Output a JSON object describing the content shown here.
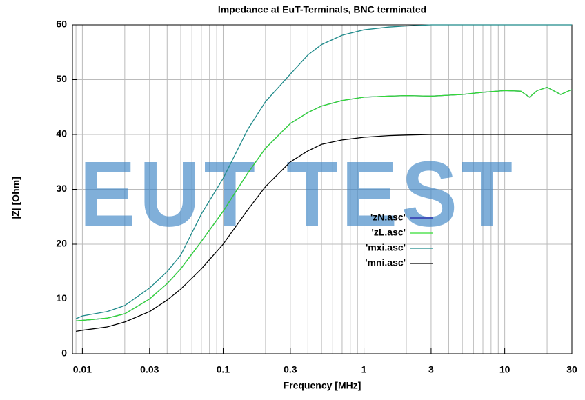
{
  "chart_data": {
    "type": "line",
    "title": "Impedance at EuT-Terminals, BNC terminated",
    "xlabel": "Frequency [MHz]",
    "ylabel": "|Z| [Ohm]",
    "watermark": "EUT TEST",
    "x": [
      0.009,
      0.01,
      0.015,
      0.02,
      0.03,
      0.04,
      0.05,
      0.07,
      0.1,
      0.15,
      0.2,
      0.3,
      0.4,
      0.5,
      0.7,
      1,
      1.5,
      2,
      3,
      5,
      7,
      10,
      13,
      15,
      17,
      20,
      25,
      30
    ],
    "series": [
      {
        "name": "'zN.asc'",
        "color": "#1c1ca8",
        "values": [
          6,
          6.1,
          6.5,
          7.3,
          10,
          12.8,
          15.5,
          20.5,
          26,
          33,
          37.5,
          42,
          44,
          45.2,
          46.2,
          46.8,
          47,
          47.1,
          47,
          47.3,
          47.7,
          48,
          47.9,
          46.8,
          48,
          48.6,
          47.3,
          48.2
        ]
      },
      {
        "name": "'zL.asc'",
        "color": "#33dd33",
        "values": [
          6,
          6.1,
          6.5,
          7.3,
          10,
          12.8,
          15.5,
          20.5,
          26,
          33,
          37.5,
          42,
          44,
          45.2,
          46.2,
          46.8,
          47,
          47.1,
          47,
          47.3,
          47.7,
          48,
          47.9,
          46.8,
          48,
          48.6,
          47.3,
          48.2
        ]
      },
      {
        "name": "'mxi.asc'",
        "color": "#1f8a8a",
        "values": [
          6.4,
          6.9,
          7.7,
          8.8,
          12,
          15,
          18,
          25.5,
          32,
          41,
          46,
          51,
          54.5,
          56.4,
          58.1,
          59.1,
          59.6,
          59.8,
          60,
          60,
          60,
          60,
          60,
          60,
          60,
          60,
          60,
          60
        ]
      },
      {
        "name": "'mni.asc'",
        "color": "#000000",
        "values": [
          4.1,
          4.3,
          4.9,
          5.8,
          7.7,
          9.8,
          11.8,
          15.5,
          20,
          26.3,
          30.5,
          35,
          37,
          38.2,
          39,
          39.5,
          39.8,
          39.9,
          40,
          40,
          40,
          40,
          40,
          40,
          40,
          40,
          40,
          40
        ]
      }
    ],
    "xscale": "log",
    "xlim": [
      0.0085,
      30
    ],
    "ylim": [
      0,
      60
    ],
    "xticks": [
      0.01,
      0.03,
      0.1,
      0.3,
      1,
      3,
      10,
      30
    ],
    "xgrid": [
      0.009,
      0.01,
      0.02,
      0.03,
      0.04,
      0.05,
      0.06,
      0.07,
      0.08,
      0.09,
      0.1,
      0.2,
      0.3,
      0.4,
      0.5,
      0.6,
      0.7,
      0.8,
      0.9,
      1,
      2,
      3,
      4,
      5,
      6,
      7,
      8,
      9,
      10,
      20,
      30
    ],
    "yticks": [
      0,
      10,
      20,
      30,
      40,
      50,
      60
    ],
    "grid": true,
    "legend": "right"
  }
}
